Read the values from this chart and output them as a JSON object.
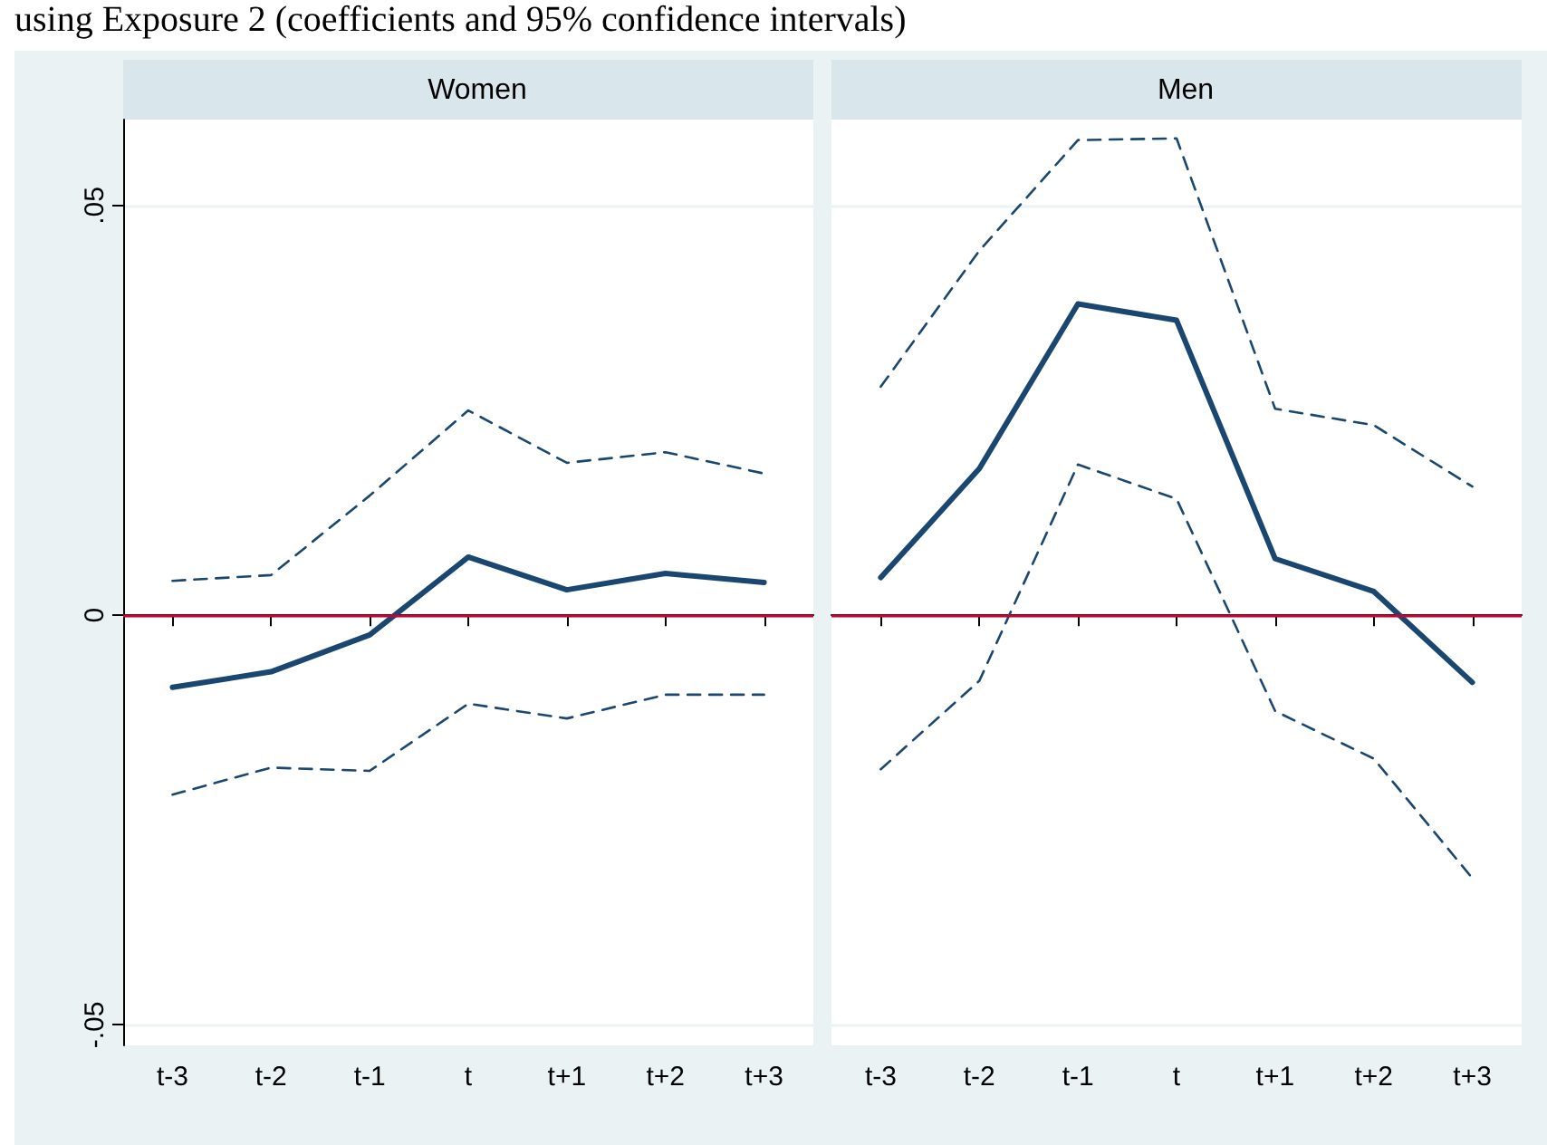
{
  "chart_data": [
    {
      "type": "line",
      "title": "Women",
      "annotations": [
        "using Exposure 2 (coefficients and 95% confidence intervals)"
      ],
      "categories": [
        "t-3",
        "t-2",
        "t-1",
        "t",
        "t+1",
        "t+2",
        "t+3"
      ],
      "series": [
        {
          "color": "#1a476f",
          "values": [
            -0.0088,
            -0.0069,
            -0.0024,
            0.0071,
            0.0031,
            0.0051,
            0.004
          ]
        },
        {
          "color": "#1a476f",
          "line_style": "dashed",
          "values": [
            0.0042,
            0.0049,
            0.0146,
            0.025,
            0.0186,
            0.0199,
            0.0173
          ]
        },
        {
          "color": "#1a476f",
          "line_style": "dashed",
          "values": [
            -0.0219,
            -0.0186,
            -0.019,
            -0.0108,
            -0.0126,
            -0.0097,
            -0.0097
          ]
        }
      ],
      "ylim": [
        -0.0525,
        0.0605
      ],
      "yticks": [
        {
          "value": -0.05,
          "label": "-.05"
        },
        {
          "value": 0,
          "label": "0"
        },
        {
          "value": 0.05,
          "label": ".05"
        }
      ],
      "ref_lines": [
        {
          "axis": "y",
          "value": 0,
          "color": "#c10534"
        }
      ],
      "grid": "y",
      "marker": "none",
      "line_style": "solid"
    },
    {
      "type": "line",
      "title": "Men",
      "categories": [
        "t-3",
        "t-2",
        "t-1",
        "t",
        "t+1",
        "t+2",
        "t+3"
      ],
      "series": [
        {
          "color": "#1a476f",
          "values": [
            0.0046,
            0.0179,
            0.038,
            0.036,
            0.0069,
            0.0029,
            -0.0082
          ]
        },
        {
          "color": "#1a476f",
          "line_style": "dashed",
          "values": [
            0.0279,
            0.0445,
            0.058,
            0.0582,
            0.0252,
            0.0232,
            0.0157
          ]
        },
        {
          "color": "#1a476f",
          "line_style": "dashed",
          "values": [
            -0.0188,
            -0.008,
            0.0184,
            0.0142,
            -0.0117,
            -0.0175,
            -0.0321
          ]
        }
      ],
      "ylim": [
        -0.0525,
        0.0605
      ],
      "yticks": [
        -0.05,
        0,
        0.05
      ],
      "ref_lines": [
        {
          "axis": "y",
          "value": 0,
          "color": "#c10534"
        }
      ],
      "grid": "y",
      "marker": "none",
      "line_style": "solid",
      "tick_labels": "x"
    }
  ]
}
